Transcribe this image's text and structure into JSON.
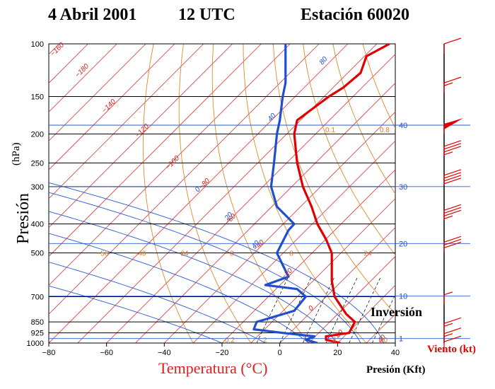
{
  "title": {
    "date": "4 Abril 2001",
    "time": "12 UTC",
    "station": "Estación 60020"
  },
  "annotations": {
    "inversion": "Inversión"
  },
  "chart_data": {
    "type": "line",
    "title": "4 Abril 2001   12 UTC   Estación 60020",
    "ylabel": "Presión",
    "yunit": "(hPa)",
    "xlabel": "Temperatura (°C)",
    "y_scale": "log",
    "xlim": [
      -80,
      40
    ],
    "ylim": [
      1000,
      100
    ],
    "x_ticks": [
      "−80",
      "−60",
      "−40",
      "−20",
      "0",
      "20",
      "40"
    ],
    "y_ticks": [
      "100",
      "150",
      "200",
      "250",
      "300",
      "400",
      "500",
      "700",
      "850",
      "925",
      "1000"
    ],
    "y_tick_values": [
      100,
      150,
      200,
      250,
      300,
      400,
      500,
      700,
      850,
      925,
      1000
    ],
    "height_axis": {
      "label": "Presión (Kft)",
      "ticks": [
        "40",
        "30",
        "20",
        "10",
        "1"
      ],
      "pressures": [
        187,
        300,
        465,
        697,
        966
      ]
    },
    "wind_axis_label": "Viento (kt)",
    "isotherm_labels": [
      "−160",
      "−180",
      "−140",
      "−120",
      "−100",
      "−80",
      "−60",
      "−40",
      "−20",
      "0",
      "20",
      "40"
    ],
    "dry_adiabat_labels": [
      "−56",
      "−40",
      "−24",
      "−8",
      "8",
      "24"
    ],
    "moist_adiabat_labels": [
      "80",
      "40",
      "0",
      "20",
      "40"
    ],
    "mixing_ratio_labels": [
      "0.1",
      "0.8",
      "0.2",
      "2",
      "8",
      "20"
    ],
    "series": [
      {
        "name": "Temperatura",
        "color": "#e00000",
        "points": [
          {
            "p": 1000,
            "t": 21
          },
          {
            "p": 975,
            "t": 16
          },
          {
            "p": 950,
            "t": 16
          },
          {
            "p": 925,
            "t": 24
          },
          {
            "p": 850,
            "t": 26
          },
          {
            "p": 800,
            "t": 23
          },
          {
            "p": 700,
            "t": 19
          },
          {
            "p": 620,
            "t": 18
          },
          {
            "p": 500,
            "t": 18
          },
          {
            "p": 450,
            "t": 16
          },
          {
            "p": 400,
            "t": 13
          },
          {
            "p": 350,
            "t": 11
          },
          {
            "p": 300,
            "t": 8
          },
          {
            "p": 250,
            "t": 6
          },
          {
            "p": 200,
            "t": 5
          },
          {
            "p": 180,
            "t": 6
          },
          {
            "p": 150,
            "t": 17
          },
          {
            "p": 140,
            "t": 22
          },
          {
            "p": 125,
            "t": 28
          },
          {
            "p": 110,
            "t": 30
          },
          {
            "p": 100,
            "t": 38
          }
        ]
      },
      {
        "name": "Punto de rocío",
        "color": "#1f4fd0",
        "points": [
          {
            "p": 1000,
            "t": 13
          },
          {
            "p": 975,
            "t": 9
          },
          {
            "p": 950,
            "t": 12
          },
          {
            "p": 925,
            "t": 1
          },
          {
            "p": 900,
            "t": -9
          },
          {
            "p": 850,
            "t": -8
          },
          {
            "p": 780,
            "t": 5
          },
          {
            "p": 700,
            "t": 9
          },
          {
            "p": 660,
            "t": 6
          },
          {
            "p": 640,
            "t": -5
          },
          {
            "p": 600,
            "t": 3
          },
          {
            "p": 500,
            "t": -1
          },
          {
            "p": 420,
            "t": 3
          },
          {
            "p": 400,
            "t": 5
          },
          {
            "p": 350,
            "t": -1
          },
          {
            "p": 300,
            "t": -3
          },
          {
            "p": 250,
            "t": -2
          },
          {
            "p": 200,
            "t": -1
          },
          {
            "p": 180,
            "t": 0
          },
          {
            "p": 150,
            "t": 1
          },
          {
            "p": 135,
            "t": 2
          },
          {
            "p": 115,
            "t": 2
          },
          {
            "p": 100,
            "t": 2
          }
        ]
      }
    ],
    "wind_barbs": [
      {
        "p": 100,
        "speed": 10
      },
      {
        "p": 135,
        "speed": 15
      },
      {
        "p": 185,
        "speed": 50
      },
      {
        "p": 220,
        "speed": 35
      },
      {
        "p": 275,
        "speed": 40
      },
      {
        "p": 360,
        "speed": 35
      },
      {
        "p": 460,
        "speed": 30
      },
      {
        "p": 690,
        "speed": 5
      },
      {
        "p": 860,
        "speed": 15
      },
      {
        "p": 930,
        "speed": 15
      },
      {
        "p": 990,
        "speed": 10
      }
    ]
  }
}
